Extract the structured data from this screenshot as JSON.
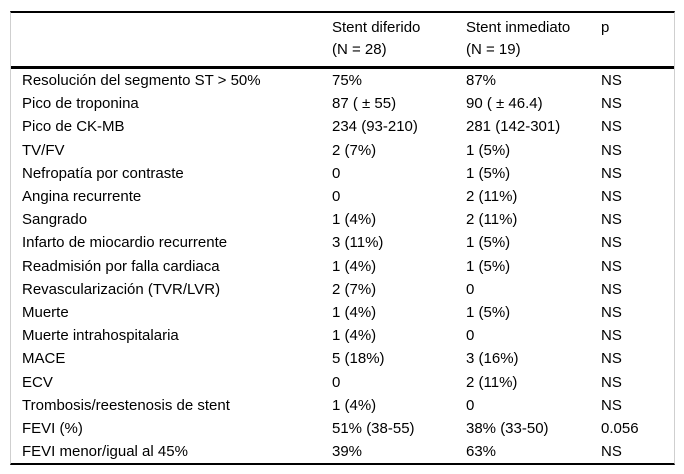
{
  "table": {
    "header": {
      "empty": "",
      "diferido_line1": "Stent diferido",
      "diferido_line2": "(N = 28)",
      "inmediato_line1": "Stent inmediato",
      "inmediato_line2": "(N = 19)",
      "p": "p"
    },
    "rows": [
      {
        "label": "Resolución del segmento ST > 50%",
        "diferido": "75%",
        "inmediato": "87%",
        "p": "NS"
      },
      {
        "label": "Pico de troponina",
        "diferido": "87 ( ± 55)",
        "inmediato": "90 ( ± 46.4)",
        "p": "NS"
      },
      {
        "label": "Pico de CK-MB",
        "diferido": "234 (93-210)",
        "inmediato": "281 (142-301)",
        "p": "NS"
      },
      {
        "label": "TV/FV",
        "diferido": "2 (7%)",
        "inmediato": "1 (5%)",
        "p": "NS"
      },
      {
        "label": "Nefropatía por contraste",
        "diferido": "0",
        "inmediato": "1 (5%)",
        "p": "NS"
      },
      {
        "label": "Angina recurrente",
        "diferido": "0",
        "inmediato": "2 (11%)",
        "p": "NS"
      },
      {
        "label": "Sangrado",
        "diferido": "1 (4%)",
        "inmediato": "2 (11%)",
        "p": "NS"
      },
      {
        "label": "Infarto de miocardio recurrente",
        "diferido": "3 (11%)",
        "inmediato": "1 (5%)",
        "p": "NS"
      },
      {
        "label": "Readmisión por falla cardiaca",
        "diferido": "1 (4%)",
        "inmediato": "1 (5%)",
        "p": "NS"
      },
      {
        "label": "Revascularización (TVR/LVR)",
        "diferido": "2 (7%)",
        "inmediato": "0",
        "p": "NS"
      },
      {
        "label": "Muerte",
        "diferido": "1 (4%)",
        "inmediato": "1 (5%)",
        "p": "NS"
      },
      {
        "label": "Muerte intrahospitalaria",
        "diferido": "1 (4%)",
        "inmediato": "0",
        "p": "NS"
      },
      {
        "label": "MACE",
        "diferido": "5 (18%)",
        "inmediato": "3 (16%)",
        "p": "NS"
      },
      {
        "label": "ECV",
        "diferido": "0",
        "inmediato": "2 (11%)",
        "p": "NS"
      },
      {
        "label": "Trombosis/reestenosis de stent",
        "diferido": "1 (4%)",
        "inmediato": "0",
        "p": "NS"
      },
      {
        "label": "FEVI (%)",
        "diferido": "51% (38-55)",
        "inmediato": "38% (33-50)",
        "p": "0.056"
      },
      {
        "label": "FEVI menor/igual al 45%",
        "diferido": "39%",
        "inmediato": "63%",
        "p": "NS"
      }
    ],
    "colors": {
      "rule_black": "#000000",
      "frame_gray": "#cfcfcf",
      "text": "#000000",
      "background": "#ffffff"
    }
  }
}
